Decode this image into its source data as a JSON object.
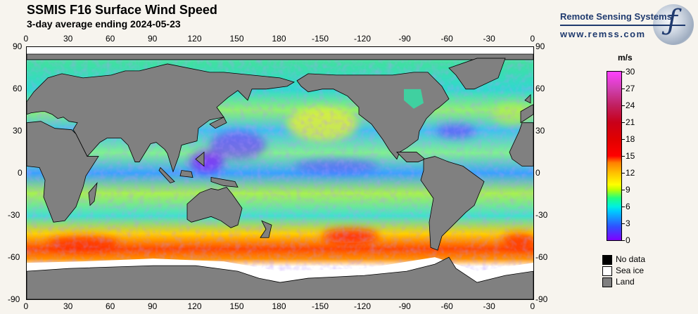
{
  "header": {
    "title": "SSMIS F16 Surface Wind Speed",
    "subtitle": "3-day average ending 2024-05-23"
  },
  "logo": {
    "name": "Remote Sensing Systems",
    "url": "www.remss.com"
  },
  "map": {
    "lon_labels": [
      "0",
      "30",
      "60",
      "90",
      "120",
      "150",
      "180",
      "-150",
      "-120",
      "-90",
      "-60",
      "-30",
      "0"
    ],
    "lat_labels": [
      "90",
      "60",
      "30",
      "0",
      "-30",
      "-60",
      "-90"
    ]
  },
  "colorbar": {
    "unit": "m/s",
    "min": 0,
    "max": 30,
    "ticks": [
      "0",
      "3",
      "6",
      "9",
      "12",
      "15",
      "18",
      "21",
      "24",
      "27",
      "30"
    ]
  },
  "legend": [
    {
      "label": "No data",
      "color": "#000000"
    },
    {
      "label": "Sea ice",
      "color": "#ffffff"
    },
    {
      "label": "Land",
      "color": "#808080"
    }
  ],
  "colors": {
    "land": "#808080",
    "background": "#f7f4ee"
  }
}
